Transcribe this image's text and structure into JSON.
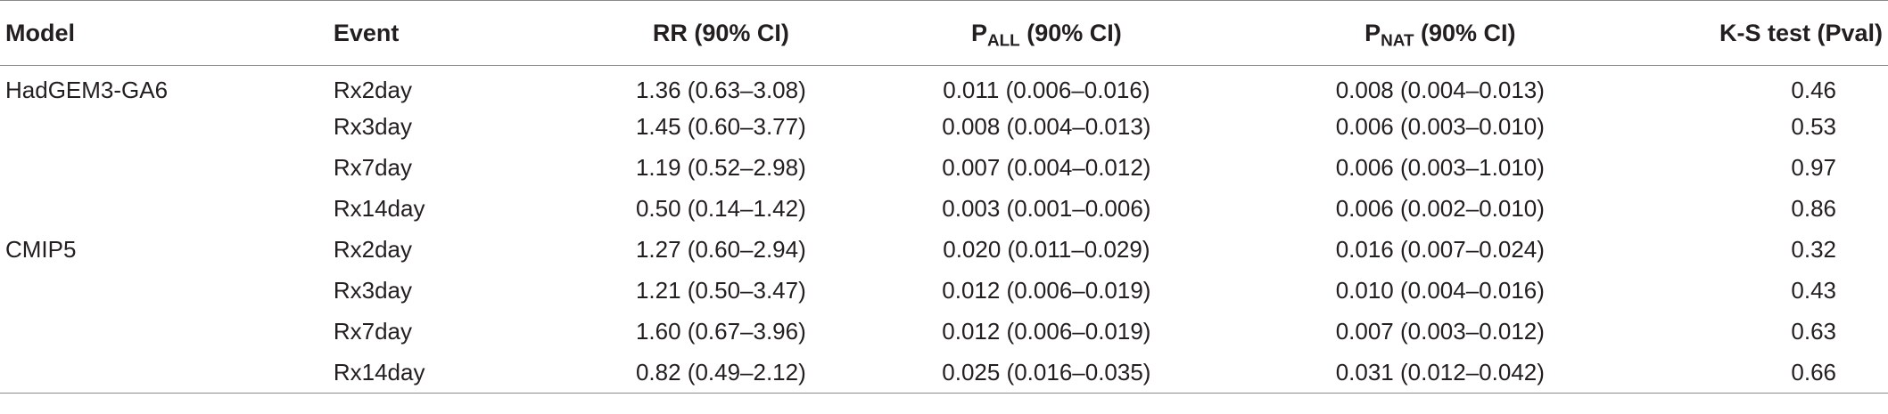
{
  "headers": {
    "model": "Model",
    "event": "Event",
    "rr": "RR (90% CI)",
    "pall_p": "P",
    "pall_sub": "ALL",
    "pall_rest": " (90% CI)",
    "pnat_p": "P",
    "pnat_sub": "NAT",
    "pnat_rest": " (90% CI)",
    "ks": "K-S test (Pval)"
  },
  "rows": [
    {
      "model": "HadGEM3-GA6",
      "event": "Rx2day",
      "rr": "1.36 (0.63–3.08)",
      "pall": "0.011 (0.006–0.016)",
      "pnat": "0.008 (0.004–0.013)",
      "ks": "0.46"
    },
    {
      "model": "",
      "event": "Rx3day",
      "rr": "1.45 (0.60–3.77)",
      "pall": "0.008 (0.004–0.013)",
      "pnat": "0.006 (0.003–0.010)",
      "ks": "0.53"
    },
    {
      "model": "",
      "event": "Rx7day",
      "rr": "1.19 (0.52–2.98)",
      "pall": "0.007 (0.004–0.012)",
      "pnat": "0.006 (0.003–1.010)",
      "ks": "0.97"
    },
    {
      "model": "",
      "event": "Rx14day",
      "rr": "0.50 (0.14–1.42)",
      "pall": "0.003 (0.001–0.006)",
      "pnat": "0.006 (0.002–0.010)",
      "ks": "0.86"
    },
    {
      "model": "CMIP5",
      "event": "Rx2day",
      "rr": "1.27 (0.60–2.94)",
      "pall": "0.020 (0.011–0.029)",
      "pnat": "0.016 (0.007–0.024)",
      "ks": "0.32"
    },
    {
      "model": "",
      "event": "Rx3day",
      "rr": "1.21 (0.50–3.47)",
      "pall": "0.012 (0.006–0.019)",
      "pnat": "0.010 (0.004–0.016)",
      "ks": "0.43"
    },
    {
      "model": "",
      "event": "Rx7day",
      "rr": "1.60 (0.67–3.96)",
      "pall": "0.012 (0.006–0.019)",
      "pnat": "0.007 (0.003–0.012)",
      "ks": "0.63"
    },
    {
      "model": "",
      "event": "Rx14day",
      "rr": "0.82 (0.49–2.12)",
      "pall": "0.025 (0.016–0.035)",
      "pnat": "0.031 (0.012–0.042)",
      "ks": "0.66"
    }
  ]
}
